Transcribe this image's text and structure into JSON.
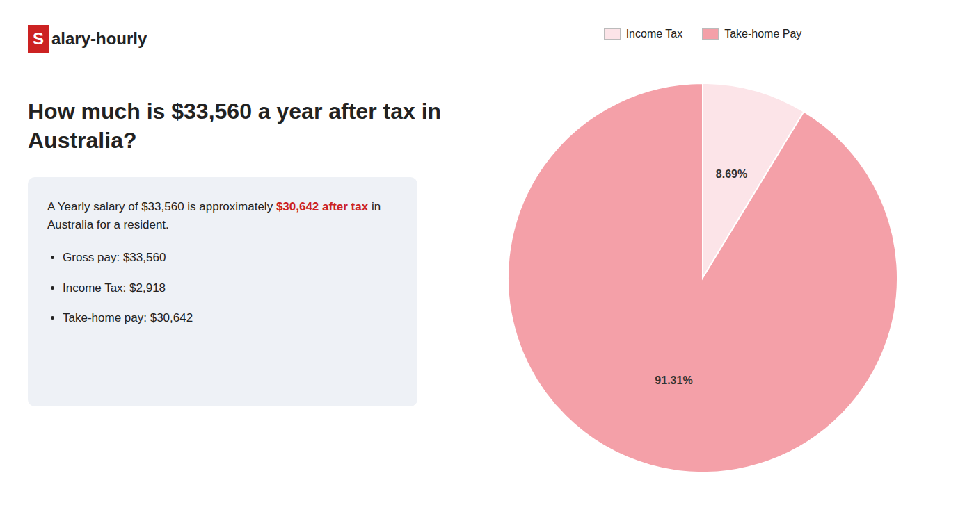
{
  "chart_data": {
    "type": "pie",
    "title": "How much is $33,560 a year after tax in\nAustralia?",
    "categories": [
      "Income Tax",
      "Take-home Pay"
    ],
    "values": [
      8.69,
      91.31
    ],
    "value_labels": [
      "8.69%",
      "91.31%"
    ],
    "colors": [
      "#fce4e8",
      "#f4a0a8"
    ],
    "data_labels": true,
    "legend": "top",
    "annotations": [
      {
        "text": "S",
        "color": "#cc2222"
      },
      {
        "text": "alary-hourly"
      },
      {
        "text": "A Yearly salary of $33,560 is approximately "
      },
      {
        "text": "$30,642 after tax",
        "color": "#cc2222"
      },
      {
        "text": " in"
      },
      {
        "text": "Australia for a resident."
      },
      {
        "text": "Gross pay: $33,560"
      },
      {
        "text": "Income Tax: $2,918"
      },
      {
        "text": "Take-home pay: $30,642"
      }
    ]
  }
}
